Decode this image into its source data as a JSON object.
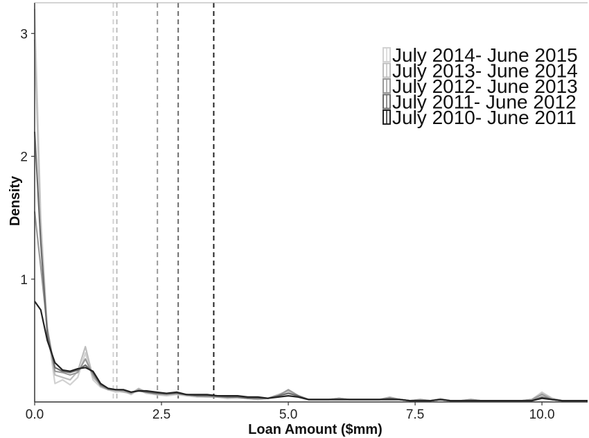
{
  "chart_data": {
    "type": "line",
    "title": "",
    "xlabel": "Loan Amount ($mm)",
    "ylabel": "Density",
    "xlim": [
      0,
      10.9
    ],
    "ylim": [
      0,
      3.25
    ],
    "x_ticks": [
      {
        "value": 0,
        "label": "0.0"
      },
      {
        "value": 2.5,
        "label": "2.5"
      },
      {
        "value": 5,
        "label": "5.0"
      },
      {
        "value": 7.5,
        "label": "7.5"
      },
      {
        "value": 10,
        "label": "10.0"
      }
    ],
    "y_ticks": [
      {
        "value": 1,
        "label": "1"
      },
      {
        "value": 2,
        "label": "2"
      },
      {
        "value": 3,
        "label": "3"
      }
    ],
    "grid": false,
    "legend_position": "top-right",
    "x": [
      0,
      0.12,
      0.25,
      0.4,
      0.55,
      0.7,
      0.85,
      1,
      1.15,
      1.3,
      1.45,
      1.6,
      1.75,
      1.9,
      2.05,
      2.2,
      2.4,
      2.6,
      2.8,
      3.0,
      3.2,
      3.4,
      3.6,
      3.8,
      4.0,
      4.2,
      4.4,
      4.6,
      4.8,
      5.0,
      5.2,
      5.4,
      5.6,
      5.8,
      6.0,
      6.2,
      6.4,
      6.6,
      6.8,
      7.0,
      7.2,
      7.4,
      7.6,
      7.8,
      8.0,
      8.2,
      8.4,
      8.6,
      8.8,
      9.0,
      9.2,
      9.4,
      9.6,
      9.8,
      10.0,
      10.2,
      10.4,
      10.6,
      10.9
    ],
    "series": [
      {
        "name": "July 2014- June 2015",
        "color": "#d2d2d2",
        "values": [
          3.2,
          1.5,
          0.6,
          0.15,
          0.18,
          0.14,
          0.2,
          0.4,
          0.18,
          0.12,
          0.1,
          0.08,
          0.09,
          0.06,
          0.1,
          0.07,
          0.06,
          0.05,
          0.06,
          0.05,
          0.04,
          0.04,
          0.04,
          0.03,
          0.03,
          0.03,
          0.02,
          0.03,
          0.05,
          0.08,
          0.04,
          0.02,
          0.02,
          0.02,
          0.03,
          0.02,
          0.02,
          0.02,
          0.02,
          0.03,
          0.02,
          0.01,
          0.02,
          0.01,
          0.03,
          0.01,
          0.01,
          0.02,
          0.01,
          0.01,
          0.01,
          0.01,
          0.01,
          0.02,
          0.08,
          0.03,
          0.01,
          0.01,
          0.01
        ]
      },
      {
        "name": "July 2013- June 2014",
        "color": "#bdbdbd",
        "values": [
          2.95,
          1.4,
          0.55,
          0.22,
          0.2,
          0.18,
          0.25,
          0.45,
          0.2,
          0.14,
          0.1,
          0.09,
          0.08,
          0.07,
          0.11,
          0.08,
          0.06,
          0.06,
          0.07,
          0.05,
          0.05,
          0.04,
          0.04,
          0.03,
          0.04,
          0.03,
          0.02,
          0.03,
          0.06,
          0.09,
          0.04,
          0.02,
          0.02,
          0.02,
          0.03,
          0.02,
          0.02,
          0.02,
          0.02,
          0.04,
          0.02,
          0.01,
          0.02,
          0.01,
          0.02,
          0.01,
          0.01,
          0.02,
          0.01,
          0.01,
          0.01,
          0.01,
          0.01,
          0.02,
          0.07,
          0.03,
          0.01,
          0.01,
          0.01
        ]
      },
      {
        "name": "July 2012- June 2013",
        "color": "#999999",
        "values": [
          1.55,
          1.1,
          0.6,
          0.25,
          0.24,
          0.22,
          0.24,
          0.35,
          0.22,
          0.13,
          0.1,
          0.1,
          0.09,
          0.07,
          0.1,
          0.08,
          0.07,
          0.06,
          0.07,
          0.06,
          0.05,
          0.05,
          0.04,
          0.04,
          0.04,
          0.03,
          0.03,
          0.03,
          0.05,
          0.1,
          0.05,
          0.02,
          0.02,
          0.02,
          0.03,
          0.02,
          0.02,
          0.02,
          0.02,
          0.03,
          0.02,
          0.01,
          0.02,
          0.01,
          0.02,
          0.01,
          0.01,
          0.02,
          0.01,
          0.01,
          0.01,
          0.01,
          0.01,
          0.02,
          0.06,
          0.02,
          0.01,
          0.01,
          0.01
        ]
      },
      {
        "name": "July 2011- June 2012",
        "color": "#6b6b6b",
        "values": [
          2.2,
          1.3,
          0.55,
          0.28,
          0.25,
          0.24,
          0.26,
          0.3,
          0.24,
          0.14,
          0.11,
          0.1,
          0.1,
          0.08,
          0.09,
          0.08,
          0.07,
          0.07,
          0.07,
          0.06,
          0.05,
          0.05,
          0.05,
          0.04,
          0.04,
          0.03,
          0.03,
          0.03,
          0.05,
          0.07,
          0.05,
          0.02,
          0.02,
          0.02,
          0.02,
          0.02,
          0.02,
          0.02,
          0.02,
          0.03,
          0.02,
          0.01,
          0.01,
          0.01,
          0.02,
          0.01,
          0.01,
          0.01,
          0.01,
          0.01,
          0.01,
          0.01,
          0.01,
          0.01,
          0.04,
          0.02,
          0.01,
          0.01,
          0.01
        ]
      },
      {
        "name": "July 2010- June 2011",
        "color": "#222222",
        "values": [
          0.82,
          0.75,
          0.5,
          0.32,
          0.26,
          0.25,
          0.27,
          0.28,
          0.25,
          0.15,
          0.11,
          0.1,
          0.1,
          0.08,
          0.09,
          0.09,
          0.08,
          0.07,
          0.08,
          0.06,
          0.06,
          0.06,
          0.05,
          0.05,
          0.05,
          0.04,
          0.04,
          0.03,
          0.04,
          0.05,
          0.04,
          0.02,
          0.02,
          0.02,
          0.02,
          0.02,
          0.02,
          0.02,
          0.02,
          0.02,
          0.02,
          0.01,
          0.01,
          0.01,
          0.02,
          0.01,
          0.01,
          0.01,
          0.01,
          0.01,
          0.01,
          0.01,
          0.01,
          0.01,
          0.03,
          0.02,
          0.01,
          0.01,
          0.01
        ]
      }
    ],
    "vlines": [
      {
        "x": 1.55,
        "color": "#d2d2d2"
      },
      {
        "x": 1.62,
        "color": "#bdbdbd"
      },
      {
        "x": 2.42,
        "color": "#999999"
      },
      {
        "x": 2.83,
        "color": "#6b6b6b"
      },
      {
        "x": 3.53,
        "color": "#222222"
      }
    ]
  }
}
